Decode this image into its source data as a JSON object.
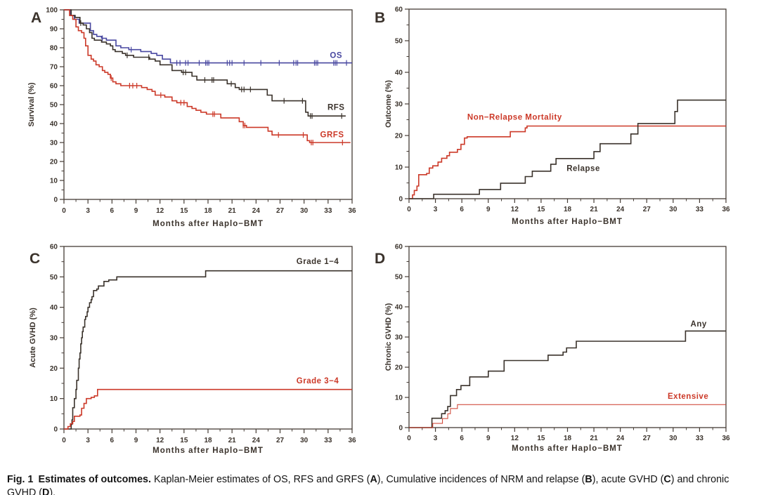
{
  "figure": {
    "caption": {
      "segments": [
        {
          "text": "Fig. 1",
          "bold": true
        },
        {
          "text": " ",
          "bold": false
        },
        {
          "text": "Estimates of outcomes.",
          "bold": true
        },
        {
          "text": " Kaplan-Meier estimates of OS, RFS and GRFS (",
          "bold": false
        },
        {
          "text": "A",
          "bold": true
        },
        {
          "text": "), Cumulative incidences of NRM and relapse (",
          "bold": false
        },
        {
          "text": "B",
          "bold": true
        },
        {
          "text": "), acute GVHD (",
          "bold": false
        },
        {
          "text": "C",
          "bold": true
        },
        {
          "text": ") and chronic GVHD (",
          "bold": false
        },
        {
          "text": "D",
          "bold": true
        },
        {
          "text": ").",
          "bold": false
        }
      ]
    }
  },
  "colors": {
    "axis": "#453c35",
    "text": "#3a322b",
    "blue": "#4847a0",
    "red": "#cc3928",
    "black": "#3a322b",
    "background": "#ffffff"
  },
  "chart_data": [
    {
      "type": "line",
      "panel_label": "A",
      "ylabel": "Survival (%)",
      "xlabel": "Months after Haplo−BMT",
      "xlim": [
        0,
        36
      ],
      "ylim": [
        0,
        100
      ],
      "xticks": [
        0,
        3,
        6,
        9,
        12,
        15,
        18,
        21,
        24,
        27,
        30,
        33,
        36
      ],
      "yticks": [
        0,
        10,
        20,
        30,
        40,
        50,
        60,
        70,
        80,
        90,
        100
      ],
      "series": [
        {
          "name": "OS",
          "color": "#4847a0",
          "label_at": [
            34,
            76
          ],
          "points": [
            [
              0,
              100
            ],
            [
              0.8,
              97
            ],
            [
              1.3,
              95
            ],
            [
              1.9,
              93
            ],
            [
              3.3,
              89
            ],
            [
              3.7,
              87
            ],
            [
              4.1,
              86
            ],
            [
              4.7,
              85
            ],
            [
              5.3,
              84
            ],
            [
              6.5,
              81
            ],
            [
              7.1,
              80
            ],
            [
              8.1,
              79
            ],
            [
              9.6,
              78
            ],
            [
              10.9,
              77
            ],
            [
              11.6,
              76
            ],
            [
              12.3,
              74
            ],
            [
              13.3,
              72
            ],
            [
              36,
              72
            ]
          ],
          "censors": [
            4.8,
            8.4,
            14.1,
            14.5,
            15.2,
            15.5,
            16.9,
            17.7,
            17.9,
            18.1,
            20.4,
            20.7,
            21.0,
            22.5,
            24.6,
            26.9,
            28.7,
            29.0,
            29.2,
            31.3,
            31.5,
            31.7,
            33.7,
            33.9,
            34.1,
            35.3
          ]
        },
        {
          "name": "RFS",
          "color": "#3a322b",
          "label_at": [
            34,
            48.5
          ],
          "points": [
            [
              0,
              100
            ],
            [
              0.9,
              97
            ],
            [
              1.4,
              96
            ],
            [
              2.0,
              93
            ],
            [
              2.4,
              92
            ],
            [
              2.8,
              90
            ],
            [
              3.2,
              88
            ],
            [
              3.5,
              85
            ],
            [
              3.8,
              84
            ],
            [
              4.7,
              83
            ],
            [
              5.3,
              82
            ],
            [
              5.8,
              81
            ],
            [
              6.1,
              79
            ],
            [
              6.4,
              78
            ],
            [
              7.3,
              77
            ],
            [
              7.7,
              76
            ],
            [
              8.7,
              75
            ],
            [
              10.7,
              74
            ],
            [
              11.4,
              73
            ],
            [
              12.0,
              71
            ],
            [
              13.5,
              68
            ],
            [
              14.7,
              67
            ],
            [
              16.0,
              65
            ],
            [
              16.6,
              63
            ],
            [
              20.4,
              61
            ],
            [
              21.4,
              59
            ],
            [
              21.9,
              58
            ],
            [
              25.4,
              55
            ],
            [
              26.0,
              52
            ],
            [
              30.2,
              46
            ],
            [
              30.5,
              44
            ],
            [
              35.2,
              44
            ]
          ],
          "censors": [
            2.1,
            7.9,
            10.6,
            14.9,
            15.2,
            17.6,
            18.5,
            18.7,
            20.9,
            22.2,
            22.5,
            23.3,
            27.5,
            29.8,
            30.8,
            31.0,
            34.7
          ]
        },
        {
          "name": "GRFS",
          "color": "#cc3928",
          "label_at": [
            33.5,
            34
          ],
          "points": [
            [
              0,
              100
            ],
            [
              0.7,
              97
            ],
            [
              1.1,
              95
            ],
            [
              1.5,
              91
            ],
            [
              1.8,
              89
            ],
            [
              2.2,
              88
            ],
            [
              2.5,
              85
            ],
            [
              2.7,
              81
            ],
            [
              3.0,
              76
            ],
            [
              3.4,
              74
            ],
            [
              3.7,
              73
            ],
            [
              4.0,
              71
            ],
            [
              4.4,
              70
            ],
            [
              4.8,
              68
            ],
            [
              5.1,
              67
            ],
            [
              5.5,
              66
            ],
            [
              5.8,
              64
            ],
            [
              6.1,
              62
            ],
            [
              6.5,
              61
            ],
            [
              7.1,
              60
            ],
            [
              9.7,
              59
            ],
            [
              10.4,
              58
            ],
            [
              11.0,
              57
            ],
            [
              11.4,
              55
            ],
            [
              12.6,
              54
            ],
            [
              13.5,
              52
            ],
            [
              14.1,
              51
            ],
            [
              15.4,
              49
            ],
            [
              16.0,
              48
            ],
            [
              16.5,
              47
            ],
            [
              17.1,
              46
            ],
            [
              17.8,
              45
            ],
            [
              19.6,
              43
            ],
            [
              21.9,
              41
            ],
            [
              22.4,
              39
            ],
            [
              22.8,
              38
            ],
            [
              25.5,
              36
            ],
            [
              26.0,
              34
            ],
            [
              30.4,
              31
            ],
            [
              30.7,
              30
            ],
            [
              35.8,
              30
            ]
          ],
          "censors": [
            5.9,
            8.2,
            8.6,
            9.1,
            12.1,
            14.6,
            15.0,
            18.6,
            18.8,
            22.4,
            22.6,
            26.8,
            29.9,
            30.9,
            31.1,
            34.8
          ]
        }
      ]
    },
    {
      "type": "line",
      "panel_label": "B",
      "ylabel": "Outcome (%)",
      "xlabel": "Months after Haplo−BMT",
      "xlim": [
        0,
        36
      ],
      "ylim": [
        0,
        60
      ],
      "xticks": [
        0,
        3,
        6,
        9,
        12,
        15,
        18,
        21,
        24,
        27,
        30,
        33,
        36
      ],
      "yticks": [
        0,
        10,
        20,
        30,
        40,
        50,
        60
      ],
      "series": [
        {
          "name": "Non−Relapse Mortality",
          "color": "#cc3928",
          "label_at": [
            12,
            25.8
          ],
          "points": [
            [
              0,
              0
            ],
            [
              0.4,
              1.2
            ],
            [
              0.6,
              2.6
            ],
            [
              0.9,
              4.0
            ],
            [
              1.1,
              7.6
            ],
            [
              2.0,
              8.0
            ],
            [
              2.3,
              9.7
            ],
            [
              2.7,
              10.4
            ],
            [
              3.3,
              11.6
            ],
            [
              3.7,
              12.8
            ],
            [
              4.3,
              13.6
            ],
            [
              4.6,
              14.7
            ],
            [
              5.5,
              15.6
            ],
            [
              5.9,
              17.2
            ],
            [
              6.3,
              19.2
            ],
            [
              6.6,
              19.6
            ],
            [
              11.5,
              21.2
            ],
            [
              13.2,
              22.4
            ],
            [
              13.4,
              23.0
            ],
            [
              36,
              23.0
            ]
          ],
          "censors": []
        },
        {
          "name": "Relapse",
          "color": "#3a322b",
          "label_at": [
            19.8,
            9.6
          ],
          "points": [
            [
              0,
              0
            ],
            [
              2.8,
              1.4
            ],
            [
              8.0,
              2.9
            ],
            [
              10.4,
              4.9
            ],
            [
              13.2,
              7.0
            ],
            [
              14.0,
              8.7
            ],
            [
              16.1,
              10.9
            ],
            [
              16.7,
              12.7
            ],
            [
              21.0,
              14.9
            ],
            [
              21.7,
              17.4
            ],
            [
              25.2,
              20.5
            ],
            [
              26.0,
              23.8
            ],
            [
              30.2,
              27.6
            ],
            [
              30.5,
              31.2
            ],
            [
              36,
              31.2
            ]
          ],
          "censors": []
        }
      ]
    },
    {
      "type": "line",
      "panel_label": "C",
      "ylabel": "Acute GVHD (%)",
      "xlabel": "Months after Haplo−BMT",
      "xlim": [
        0,
        36
      ],
      "ylim": [
        0,
        60
      ],
      "xticks": [
        0,
        3,
        6,
        9,
        12,
        15,
        18,
        21,
        24,
        27,
        30,
        33,
        36
      ],
      "yticks": [
        0,
        10,
        20,
        30,
        40,
        50,
        60
      ],
      "series": [
        {
          "name": "Grade 1−4",
          "color": "#3a322b",
          "label_at": [
            31.7,
            55
          ],
          "points": [
            [
              0,
              0
            ],
            [
              0.9,
              1.5
            ],
            [
              1.0,
              3
            ],
            [
              1.1,
              7
            ],
            [
              1.3,
              10
            ],
            [
              1.5,
              13
            ],
            [
              1.6,
              16
            ],
            [
              1.8,
              20
            ],
            [
              1.9,
              23
            ],
            [
              2.0,
              25
            ],
            [
              2.1,
              28
            ],
            [
              2.2,
              30
            ],
            [
              2.3,
              32
            ],
            [
              2.4,
              33.5
            ],
            [
              2.6,
              36
            ],
            [
              2.7,
              37
            ],
            [
              2.9,
              38.5
            ],
            [
              3.0,
              40
            ],
            [
              3.2,
              41.5
            ],
            [
              3.4,
              42.5
            ],
            [
              3.5,
              43.5
            ],
            [
              3.7,
              45.5
            ],
            [
              4.1,
              46
            ],
            [
              4.3,
              47
            ],
            [
              5.0,
              48.5
            ],
            [
              5.6,
              49
            ],
            [
              6.6,
              50
            ],
            [
              17.7,
              52
            ],
            [
              36,
              52
            ]
          ],
          "censors": []
        },
        {
          "name": "Grade 3−4",
          "color": "#cc3928",
          "label_at": [
            31.7,
            15.8
          ],
          "points": [
            [
              0,
              0
            ],
            [
              0.5,
              0.8
            ],
            [
              0.8,
              1.7
            ],
            [
              1.1,
              2.5
            ],
            [
              1.3,
              4.2
            ],
            [
              2.0,
              4.6
            ],
            [
              2.2,
              6.8
            ],
            [
              2.5,
              8.4
            ],
            [
              2.8,
              10.0
            ],
            [
              3.4,
              10.4
            ],
            [
              3.8,
              10.9
            ],
            [
              4.2,
              13.0
            ],
            [
              36,
              13.0
            ]
          ],
          "censors": []
        }
      ]
    },
    {
      "type": "line",
      "panel_label": "D",
      "ylabel": "Chronic GVHD (%)",
      "xlabel": "Months after Haplo−BMT",
      "xlim": [
        0,
        36
      ],
      "ylim": [
        0,
        60
      ],
      "xticks": [
        0,
        3,
        6,
        9,
        12,
        15,
        18,
        21,
        24,
        27,
        30,
        33,
        36
      ],
      "yticks": [
        0,
        10,
        20,
        30,
        40,
        50,
        60
      ],
      "series": [
        {
          "name": "Any",
          "color": "#3a322b",
          "label_at": [
            32.9,
            34.3
          ],
          "points": [
            [
              0,
              0
            ],
            [
              2.6,
              3.1
            ],
            [
              3.7,
              4.6
            ],
            [
              4.1,
              5.6
            ],
            [
              4.4,
              7.0
            ],
            [
              4.7,
              10.6
            ],
            [
              5.4,
              12.6
            ],
            [
              5.9,
              13.9
            ],
            [
              6.9,
              16.8
            ],
            [
              9.0,
              18.7
            ],
            [
              10.8,
              22.2
            ],
            [
              15.8,
              24.0
            ],
            [
              17.5,
              25.0
            ],
            [
              17.9,
              26.4
            ],
            [
              19.0,
              28.6
            ],
            [
              31.4,
              32.0
            ],
            [
              36,
              32.0
            ]
          ],
          "censors": []
        },
        {
          "name": "Extensive",
          "color": "#cc3928",
          "label_at": [
            31.7,
            10.3
          ],
          "width": 1,
          "points": [
            [
              0,
              0
            ],
            [
              2.7,
              1.4
            ],
            [
              3.8,
              3.0
            ],
            [
              4.4,
              4.6
            ],
            [
              4.7,
              6.3
            ],
            [
              5.5,
              7.6
            ],
            [
              36,
              7.6
            ]
          ],
          "censors": []
        }
      ]
    }
  ]
}
